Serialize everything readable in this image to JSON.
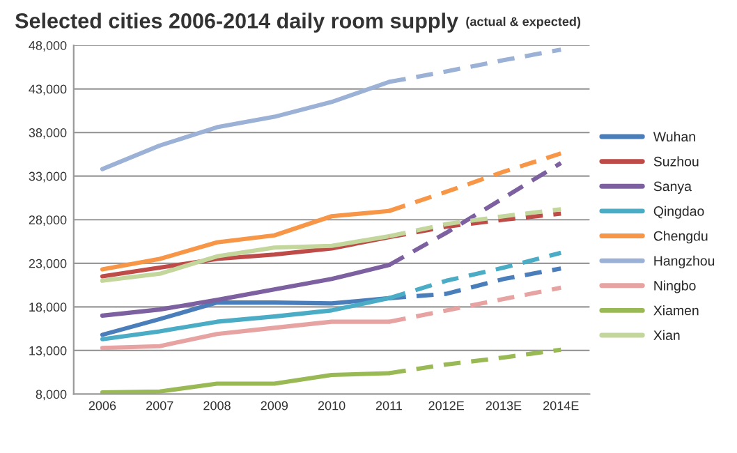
{
  "chart_data": {
    "type": "line",
    "title": "Selected cities 2006-2014 daily room supply",
    "subtitle": "(actual & expected)",
    "categories": [
      "2006",
      "2007",
      "2008",
      "2009",
      "2010",
      "2011",
      "2012E",
      "2013E",
      "2014E"
    ],
    "ylim": [
      8000,
      48000
    ],
    "yticks": [
      {
        "value": 8000,
        "label": "8,000"
      },
      {
        "value": 13000,
        "label": "13,000"
      },
      {
        "value": 18000,
        "label": "18,000"
      },
      {
        "value": 23000,
        "label": "23,000"
      },
      {
        "value": 28000,
        "label": "28,000"
      },
      {
        "value": 33000,
        "label": "33,000"
      },
      {
        "value": 38000,
        "label": "38,000"
      },
      {
        "value": 43000,
        "label": "43,000"
      },
      {
        "value": 48000,
        "label": "48,000"
      }
    ],
    "grid": "y",
    "legend": "right",
    "marker": "none",
    "series": [
      {
        "name": "Wuhan",
        "color": "#4a7ebb",
        "line_style": "solid",
        "values": [
          14800,
          16600,
          18500,
          18500,
          18400,
          19000,
          null,
          null,
          null
        ]
      },
      {
        "name": "Suzhou",
        "color": "#be4b48",
        "line_style": "solid",
        "values": [
          21500,
          22500,
          23500,
          24000,
          24700,
          26000,
          null,
          null,
          null
        ]
      },
      {
        "name": "Sanya",
        "color": "#7d60a0",
        "line_style": "solid",
        "values": [
          17000,
          17700,
          18800,
          20000,
          21200,
          22800,
          null,
          null,
          null
        ]
      },
      {
        "name": "Qingdao",
        "color": "#4bacc6",
        "line_style": "solid",
        "values": [
          14300,
          15200,
          16300,
          16900,
          17600,
          19000,
          null,
          null,
          null
        ]
      },
      {
        "name": "Chengdu",
        "color": "#f79646",
        "line_style": "solid",
        "values": [
          22300,
          23500,
          25400,
          26200,
          28400,
          29000,
          null,
          null,
          null
        ]
      },
      {
        "name": "Hangzhou",
        "color": "#9bb1d6",
        "line_style": "solid",
        "values": [
          33800,
          36500,
          38600,
          39800,
          41500,
          43800,
          null,
          null,
          null
        ]
      },
      {
        "name": "Ningbo",
        "color": "#e6a3a1",
        "line_style": "solid",
        "values": [
          13300,
          13500,
          14900,
          15600,
          16300,
          16300,
          null,
          null,
          null
        ]
      },
      {
        "name": "Xiamen",
        "color": "#98b954",
        "line_style": "solid",
        "values": [
          8200,
          8300,
          9200,
          9200,
          10200,
          10400,
          null,
          null,
          null
        ]
      },
      {
        "name": "Xian",
        "color": "#c3d69b",
        "line_style": "solid",
        "values": [
          21000,
          21800,
          23800,
          24800,
          25000,
          26100,
          null,
          null,
          null
        ]
      },
      {
        "color": "#4a7ebb",
        "line_style": "dashed",
        "values": [
          null,
          null,
          null,
          null,
          null,
          19000,
          19500,
          21200,
          22400
        ]
      },
      {
        "color": "#be4b48",
        "line_style": "dashed",
        "values": [
          null,
          null,
          null,
          null,
          null,
          26000,
          27200,
          28000,
          28700
        ]
      },
      {
        "color": "#7d60a0",
        "line_style": "dashed",
        "values": [
          null,
          null,
          null,
          null,
          null,
          22800,
          26500,
          30500,
          34500
        ]
      },
      {
        "color": "#4bacc6",
        "line_style": "dashed",
        "values": [
          null,
          null,
          null,
          null,
          null,
          19000,
          21000,
          22500,
          24200
        ]
      },
      {
        "color": "#f79646",
        "line_style": "dashed",
        "values": [
          null,
          null,
          null,
          null,
          null,
          29000,
          31200,
          33500,
          35600
        ]
      },
      {
        "color": "#9bb1d6",
        "line_style": "dashed",
        "values": [
          null,
          null,
          null,
          null,
          null,
          43800,
          45000,
          46300,
          47500
        ]
      },
      {
        "color": "#e6a3a1",
        "line_style": "dashed",
        "values": [
          null,
          null,
          null,
          null,
          null,
          16300,
          17600,
          18900,
          20200
        ]
      },
      {
        "color": "#98b954",
        "line_style": "dashed",
        "values": [
          null,
          null,
          null,
          null,
          null,
          10400,
          11400,
          12200,
          13100
        ]
      },
      {
        "color": "#c3d69b",
        "line_style": "dashed",
        "values": [
          null,
          null,
          null,
          null,
          null,
          26100,
          27500,
          28400,
          29200
        ]
      }
    ]
  }
}
